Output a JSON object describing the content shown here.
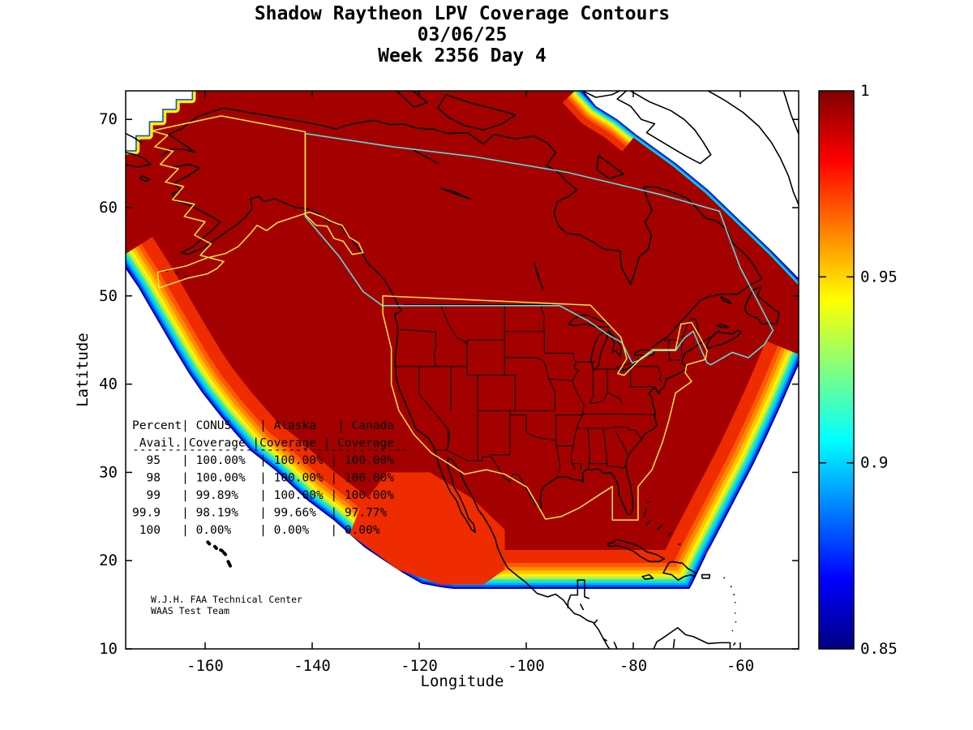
{
  "title": {
    "line1": "Shadow Raytheon LPV Coverage Contours",
    "line2": "03/06/25",
    "line3": "Week 2356 Day 4"
  },
  "axes": {
    "xlabel": "Longitude",
    "ylabel": "Latitude",
    "x_ticks": [
      {
        "value": -160,
        "label": "-160"
      },
      {
        "value": -140,
        "label": "-140"
      },
      {
        "value": -120,
        "label": "-120"
      },
      {
        "value": -100,
        "label": "-100"
      },
      {
        "value": -80,
        "label": "-80"
      },
      {
        "value": -60,
        "label": "-60"
      }
    ],
    "y_ticks": [
      {
        "value": 70,
        "label": "70"
      },
      {
        "value": 60,
        "label": "60"
      },
      {
        "value": 50,
        "label": "50"
      },
      {
        "value": 40,
        "label": "40"
      },
      {
        "value": 30,
        "label": "30"
      },
      {
        "value": 20,
        "label": "20"
      },
      {
        "value": 10,
        "label": "10"
      }
    ]
  },
  "colorbar": {
    "min": 0.85,
    "max": 1,
    "colormap": "jet",
    "ticks": [
      {
        "value": 1,
        "label": "1"
      },
      {
        "value": 0.95,
        "label": "0.95"
      },
      {
        "value": 0.9,
        "label": "0.9"
      },
      {
        "value": 0.85,
        "label": "0.85"
      }
    ]
  },
  "coverage_table": {
    "display_lines": [
      "Percent| CONUS    | Alaska   | Canada",
      " Avail.|Coverage |Coverage | Coverage",
      "---------------------------------------",
      "  95   | 100.00%  | 100.00% | 100.00%",
      "  98   | 100.00%  | 100.00% | 100.00%",
      "  99   | 99.89%   | 100.00% | 100.00%",
      "99.9   | 98.19%   | 99.66%  | 97.77%",
      " 100   | 0.00%    | 0.00%   | 0.00%"
    ]
  },
  "attribution": {
    "line1": "W.J.H. FAA Technical Center",
    "line2": "WAAS Test Team"
  },
  "colors": {
    "background": "#ffffff",
    "coverage_core": "#a40000",
    "contour_bands": [
      "#ee2c00",
      "#ff5a00",
      "#ff8c00",
      "#ffc400",
      "#fff200",
      "#b8f046",
      "#46e6a0",
      "#00e1dc",
      "#00aaff",
      "#0050ff",
      "#0000aa"
    ],
    "boundary_conus_alaska": "#f5e642",
    "boundary_canada": "#55dede",
    "coastline": "#000000",
    "jet_stops": [
      "#00007f",
      "#0000ff",
      "#00ffff",
      "#ffff00",
      "#ff0000",
      "#7f0000"
    ]
  },
  "chart_data": {
    "type": "heatmap",
    "subtype": "filled_contour_map",
    "title": "Shadow Raytheon LPV Coverage Contours 03/06/25 Week 2356 Day 4",
    "xlabel": "Longitude",
    "ylabel": "Latitude",
    "xlim": [
      -175,
      -49
    ],
    "ylim": [
      10,
      73.5
    ],
    "grid": false,
    "colormap": "jet",
    "colorbar_range": [
      0.85,
      1
    ],
    "colorbar_ticks": [
      0.85,
      0.9,
      0.95,
      1
    ],
    "description": "WAAS LPV availability coverage contours over North America. Availability near 1 (dark red) covers CONUS, Alaska and Canada; rainbow contour bands (red through blue, 1 down to 0.85) mark the service-volume edges over the Pacific, Gulf/Caribbean, northwest Atlantic and Arctic. Yellow outlines: CONUS and Alaska service boundaries; cyan outline: Canada service boundary.",
    "coverage_stats": {
      "percent_availability": [
        "95",
        "98",
        "99",
        "99.9",
        "100"
      ],
      "series": [
        {
          "name": "CONUS Coverage",
          "values": [
            "100.00%",
            "100.00%",
            "99.89%",
            "98.19%",
            "0.00%"
          ]
        },
        {
          "name": "Alaska Coverage",
          "values": [
            "100.00%",
            "100.00%",
            "100.00%",
            "99.66%",
            "0.00%"
          ]
        },
        {
          "name": "Canada Coverage",
          "values": [
            "100.00%",
            "100.00%",
            "100.00%",
            "97.77%",
            "0.00%"
          ]
        }
      ]
    }
  }
}
